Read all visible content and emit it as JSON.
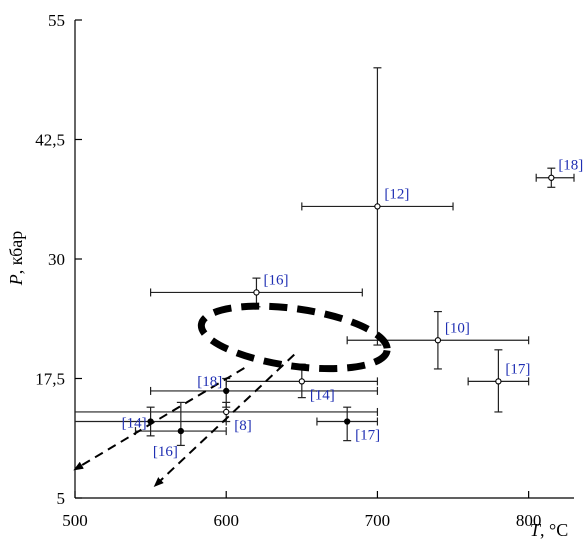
{
  "chart_data": {
    "type": "scatter",
    "xlabel_symbol": "T",
    "xlabel_unit": ", °C",
    "ylabel_symbol": "P",
    "ylabel_unit": ", кбар",
    "xlim": [
      500,
      830
    ],
    "ylim": [
      5,
      55
    ],
    "x_ticks": [
      500,
      600,
      700,
      800
    ],
    "y_ticks": [
      5,
      17.5,
      30,
      42.5,
      55
    ],
    "y_tick_labels": [
      "5",
      "17,5",
      "30",
      "42,5",
      "55"
    ],
    "grid": false,
    "points": [
      {
        "label": "[18]",
        "x": 815,
        "y": 38.5,
        "x_err": [
          805,
          830
        ],
        "y_err": [
          37.5,
          39.5
        ],
        "filled": false,
        "label_pos": "right-above"
      },
      {
        "label": "[12]",
        "x": 700,
        "y": 35.5,
        "x_err": [
          650,
          750
        ],
        "y_err": [
          21,
          50
        ],
        "filled": false,
        "label_pos": "right-above"
      },
      {
        "label": "[16]",
        "x": 620,
        "y": 26.5,
        "x_err": [
          550,
          690
        ],
        "y_err": [
          25,
          28
        ],
        "filled": false,
        "label_pos": "right-above"
      },
      {
        "label": "[10]",
        "x": 740,
        "y": 21.5,
        "x_err": [
          680,
          800
        ],
        "y_err": [
          18.5,
          24.5
        ],
        "filled": false,
        "label_pos": "right-above"
      },
      {
        "label": "[17]",
        "x": 780,
        "y": 17.2,
        "x_err": [
          760,
          800
        ],
        "y_err": [
          14,
          20.5
        ],
        "filled": false,
        "label_pos": "right-above"
      },
      {
        "label": "[14]",
        "x": 650,
        "y": 17.2,
        "x_err": [
          600,
          700
        ],
        "y_err": [
          15.5,
          19
        ],
        "filled": false,
        "label_pos": "right-below"
      },
      {
        "label": "[18]",
        "x": 600,
        "y": 16.2,
        "x_err": [
          550,
          700
        ],
        "y_err": [
          14.5,
          17.5
        ],
        "filled": true,
        "label_pos": "left-above"
      },
      {
        "label": "[8]",
        "x": 600,
        "y": 14.0,
        "x_err": [
          500,
          700
        ],
        "y_err": [
          13,
          15
        ],
        "filled": false,
        "label_pos": "right-below"
      },
      {
        "label": "[14]",
        "x": 550,
        "y": 13.0,
        "x_err": [
          500,
          600
        ],
        "y_err": [
          11.5,
          14.5
        ],
        "filled": true,
        "label_pos": "left"
      },
      {
        "label": "[16]",
        "x": 570,
        "y": 12.0,
        "x_err": [
          540,
          600
        ],
        "y_err": [
          10.5,
          15
        ],
        "filled": true,
        "label_pos": "left-below"
      },
      {
        "label": "[17]",
        "x": 680,
        "y": 13.0,
        "x_err": [
          660,
          700
        ],
        "y_err": [
          11,
          14.5
        ],
        "filled": true,
        "label_pos": "right-below"
      }
    ],
    "ellipse": {
      "center": [
        645,
        21.8
      ],
      "radii": [
        62,
        3.0
      ]
    },
    "arrows": [
      {
        "from": [
          612,
          18.6
        ],
        "to": [
          500,
          8.0
        ]
      },
      {
        "from": [
          645,
          20.0
        ],
        "to": [
          553,
          6.3
        ]
      }
    ]
  }
}
